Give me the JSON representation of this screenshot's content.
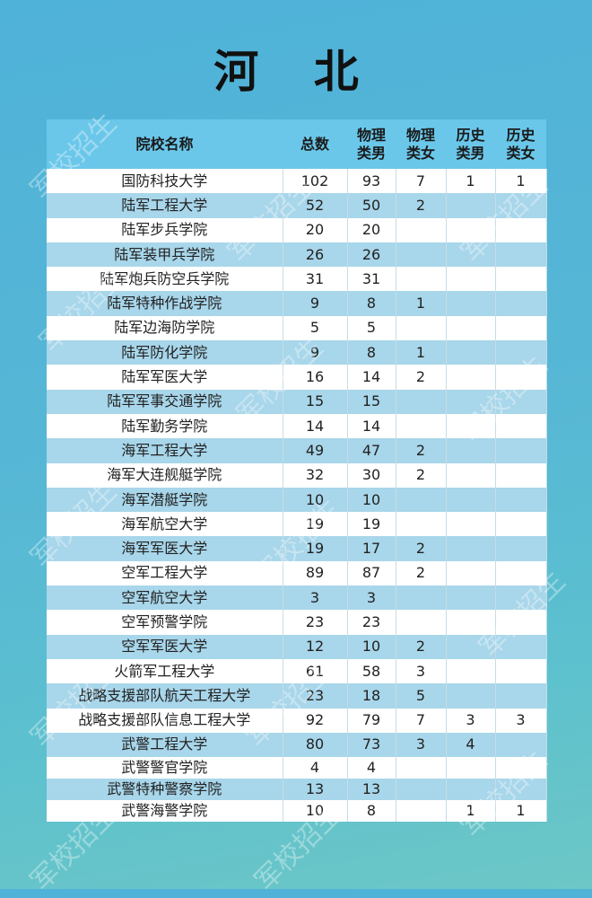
{
  "title": "河 北",
  "watermark": "军校招生",
  "headers": [
    "院校名称",
    "总数",
    "物理类男",
    "物理类女",
    "历史类男",
    "历史类女"
  ],
  "rows": [
    [
      "国防科技大学",
      "102",
      "93",
      "7",
      "1",
      "1"
    ],
    [
      "陆军工程大学",
      "52",
      "50",
      "2",
      "",
      ""
    ],
    [
      "陆军步兵学院",
      "20",
      "20",
      "",
      "",
      ""
    ],
    [
      "陆军装甲兵学院",
      "26",
      "26",
      "",
      "",
      ""
    ],
    [
      "陆军炮兵防空兵学院",
      "31",
      "31",
      "",
      "",
      ""
    ],
    [
      "陆军特种作战学院",
      "9",
      "8",
      "1",
      "",
      ""
    ],
    [
      "陆军边海防学院",
      "5",
      "5",
      "",
      "",
      ""
    ],
    [
      "陆军防化学院",
      "9",
      "8",
      "1",
      "",
      ""
    ],
    [
      "陆军军医大学",
      "16",
      "14",
      "2",
      "",
      ""
    ],
    [
      "陆军军事交通学院",
      "15",
      "15",
      "",
      "",
      ""
    ],
    [
      "陆军勤务学院",
      "14",
      "14",
      "",
      "",
      ""
    ],
    [
      "海军工程大学",
      "49",
      "47",
      "2",
      "",
      ""
    ],
    [
      "海军大连舰艇学院",
      "32",
      "30",
      "2",
      "",
      ""
    ],
    [
      "海军潜艇学院",
      "10",
      "10",
      "",
      "",
      ""
    ],
    [
      "海军航空大学",
      "19",
      "19",
      "",
      "",
      ""
    ],
    [
      "海军军医大学",
      "19",
      "17",
      "2",
      "",
      ""
    ],
    [
      "空军工程大学",
      "89",
      "87",
      "2",
      "",
      ""
    ],
    [
      "空军航空大学",
      "3",
      "3",
      "",
      "",
      ""
    ],
    [
      "空军预警学院",
      "23",
      "23",
      "",
      "",
      ""
    ],
    [
      "空军军医大学",
      "12",
      "10",
      "2",
      "",
      ""
    ],
    [
      "火箭军工程大学",
      "61",
      "58",
      "3",
      "",
      ""
    ],
    [
      "战略支援部队航天工程大学",
      "23",
      "18",
      "5",
      "",
      ""
    ],
    [
      "战略支援部队信息工程大学",
      "92",
      "79",
      "7",
      "3",
      "3"
    ],
    [
      "武警工程大学",
      "80",
      "73",
      "3",
      "4",
      ""
    ],
    [
      "武警警官学院",
      "4",
      "4",
      "",
      "",
      ""
    ],
    [
      "武警特种警察学院",
      "13",
      "13",
      "",
      "",
      ""
    ],
    [
      "武警海警学院",
      "10",
      "8",
      "",
      "1",
      "1"
    ]
  ]
}
